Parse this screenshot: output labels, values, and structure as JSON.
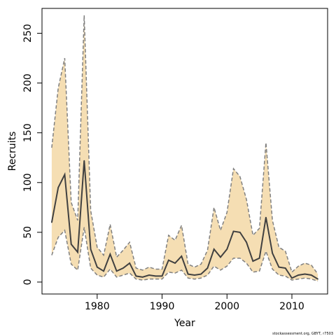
{
  "chart_data": {
    "type": "line",
    "xlabel": "Year",
    "ylabel": "Recruits",
    "xlim": [
      1971.5,
      2015.5
    ],
    "ylim": [
      -12,
      275
    ],
    "x_ticks": [
      1980,
      1990,
      2000,
      2010
    ],
    "y_ticks": [
      0,
      50,
      100,
      150,
      200,
      250
    ],
    "grid": false,
    "band_color": "#F5DEB3",
    "band_edge_color": "#808080",
    "line_color": "#404040",
    "series": [
      {
        "name": "median",
        "x": [
          1973,
          1974,
          1975,
          1976,
          1977,
          1978,
          1979,
          1980,
          1981,
          1982,
          1983,
          1984,
          1985,
          1986,
          1987,
          1988,
          1989,
          1990,
          1991,
          1992,
          1993,
          1994,
          1995,
          1996,
          1997,
          1998,
          1999,
          2000,
          2001,
          2002,
          2003,
          2004,
          2005,
          2006,
          2007,
          2008,
          2009,
          2010,
          2011,
          2012,
          2013,
          2014
        ],
        "values": [
          60,
          95,
          108,
          38,
          30,
          122,
          33,
          15,
          11,
          28,
          11,
          14,
          19,
          6,
          5,
          7,
          6,
          6,
          22,
          19,
          26,
          8,
          7,
          8,
          14,
          33,
          25,
          33,
          51,
          50,
          40,
          21,
          24,
          65,
          29,
          15,
          14,
          4,
          7,
          8,
          7,
          3
        ]
      },
      {
        "name": "lower",
        "x": [
          1973,
          1974,
          1975,
          1976,
          1977,
          1978,
          1979,
          1980,
          1981,
          1982,
          1983,
          1984,
          1985,
          1986,
          1987,
          1988,
          1989,
          1990,
          1991,
          1992,
          1993,
          1994,
          1995,
          1996,
          1997,
          1998,
          1999,
          2000,
          2001,
          2002,
          2003,
          2004,
          2005,
          2006,
          2007,
          2008,
          2009,
          2010,
          2011,
          2012,
          2013,
          2014
        ],
        "values": [
          27,
          45,
          52,
          18,
          12,
          55,
          14,
          7,
          5,
          13,
          5,
          7,
          9,
          3,
          2,
          3,
          3,
          3,
          10,
          9,
          12,
          4,
          3,
          4,
          7,
          16,
          12,
          16,
          24,
          24,
          19,
          10,
          11,
          31,
          13,
          7,
          6,
          2,
          3,
          4,
          3,
          1
        ]
      },
      {
        "name": "upper",
        "x": [
          1973,
          1974,
          1975,
          1976,
          1977,
          1978,
          1979,
          1980,
          1981,
          1982,
          1983,
          1984,
          1985,
          1986,
          1987,
          1988,
          1989,
          1990,
          1991,
          1992,
          1993,
          1994,
          1995,
          1996,
          1997,
          1998,
          1999,
          2000,
          2001,
          2002,
          2003,
          2004,
          2005,
          2006,
          2007,
          2008,
          2009,
          2010,
          2011,
          2012,
          2013,
          2014
        ],
        "values": [
          135,
          195,
          225,
          80,
          62,
          268,
          72,
          35,
          27,
          58,
          25,
          32,
          40,
          14,
          12,
          15,
          13,
          13,
          47,
          42,
          57,
          18,
          15,
          18,
          32,
          75,
          52,
          70,
          114,
          106,
          83,
          47,
          54,
          140,
          62,
          35,
          31,
          10,
          16,
          19,
          17,
          8
        ]
      }
    ]
  },
  "credit": "stockassessment.org, GBYT, r7503"
}
